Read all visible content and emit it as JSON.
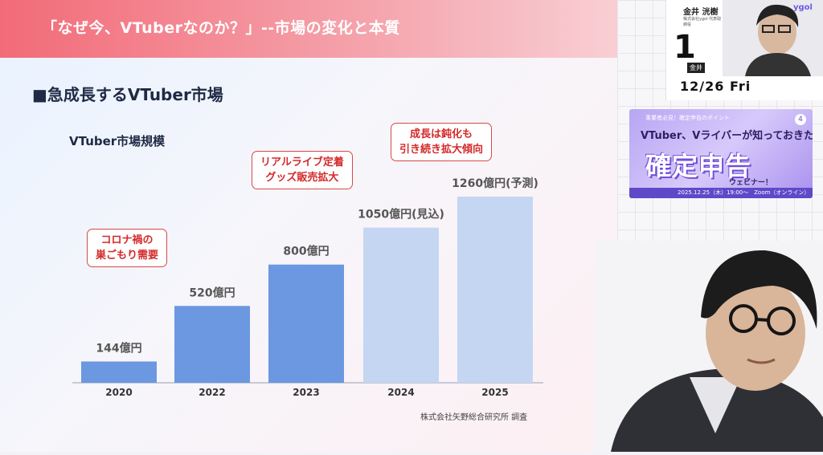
{
  "slide": {
    "title": "「なぜ今、VTuberなのか？」--市場の変化と本質",
    "section_title": "■急成長するVTuber市場",
    "chart_title": "VTuber市場規模",
    "source": "株式会社矢野総合研究所 調査"
  },
  "chart_data": {
    "type": "bar",
    "title": "VTuber市場規模",
    "categories": [
      "2020",
      "2022",
      "2023",
      "2024",
      "2025"
    ],
    "values": [
      144,
      520,
      800,
      1050,
      1260
    ],
    "unit": "億円",
    "data_labels": [
      "144億円",
      "520億円",
      "800億円",
      "1050億円(見込)",
      "1260億円(予測)"
    ],
    "ylim": [
      0,
      1260
    ],
    "bar_colors": [
      "#6b98e0",
      "#6b98e0",
      "#6b98e0",
      "#c5d6f3",
      "#c5d6f3"
    ],
    "annotations": [
      {
        "lines": [
          "コロナ禍の",
          "巣ごもり需要"
        ]
      },
      {
        "lines": [
          "リアルライブ定着",
          "グッズ販売拡大"
        ]
      },
      {
        "lines": [
          "成長は鈍化も",
          "引き続き拡大傾向"
        ]
      }
    ]
  },
  "presenter": {
    "name": "金井 洸樹",
    "role": "株式会社ygol 代表取締役",
    "number": "1",
    "badge": "金井",
    "date": "12/26 Fri",
    "logo": "ygol"
  },
  "banner": {
    "top_text": "事業者必見！確定申告のポイント",
    "subtitle": "VTuber、Vライバーが知っておきたい",
    "main": "確定申告",
    "tail": "ウェビナー！",
    "date_text": "2025.12.25（木）19:00〜　Zoom（オンライン）",
    "number": "4"
  },
  "colors": {
    "header": "#f26b78",
    "bar_actual": "#6b98e0",
    "bar_forecast": "#c5d6f3",
    "annotation": "#d42a2a"
  }
}
